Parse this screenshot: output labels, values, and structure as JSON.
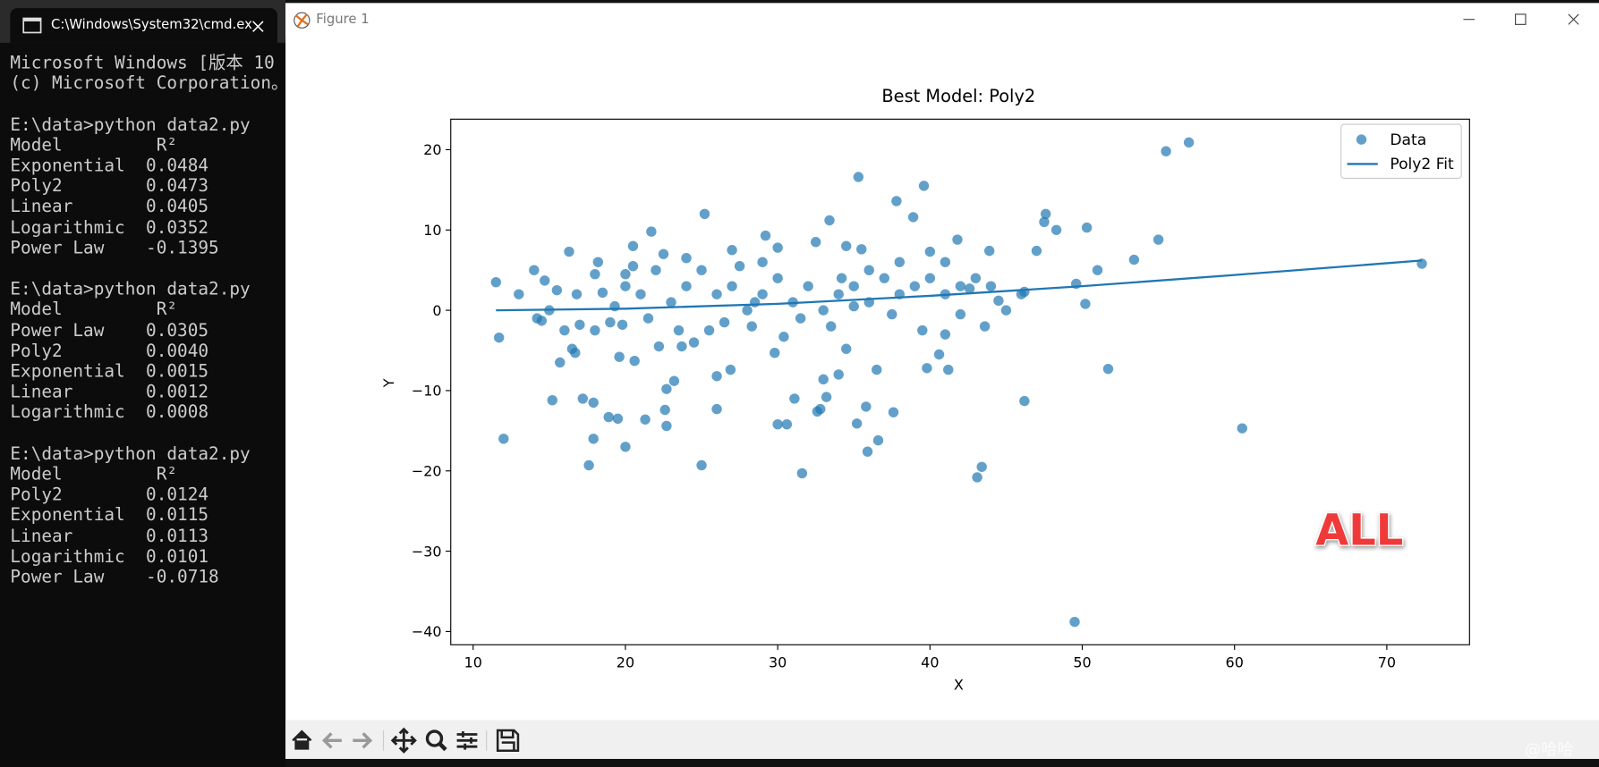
{
  "terminal": {
    "tab_title": "C:\\Windows\\System32\\cmd.ex",
    "blocks": [
      [
        "Microsoft Windows [版本 10",
        "(c) Microsoft Corporation。"
      ],
      [
        "E:\\data>python data2.py",
        "Model         R²",
        "Exponential  0.0484",
        "Poly2        0.0473",
        "Linear       0.0405",
        "Logarithmic  0.0352",
        "Power Law    -0.1395"
      ],
      [
        "E:\\data>python data2.py",
        "Model         R²",
        "Power Law    0.0305",
        "Poly2        0.0040",
        "Exponential  0.0015",
        "Linear       0.0012",
        "Logarithmic  0.0008"
      ],
      [
        "E:\\data>python data2.py",
        "Model         R²",
        "Poly2        0.0124",
        "Exponential  0.0115",
        "Linear       0.0113",
        "Logarithmic  0.0101",
        "Power Law    -0.0718"
      ]
    ]
  },
  "window": {
    "title": "Figure 1"
  },
  "watermark": "@哈哈",
  "chart_data": {
    "type": "scatter",
    "title": "Best Model: Poly2",
    "x_label": "X",
    "y_label": "Y",
    "xlim": [
      8.53,
      75.43
    ],
    "ylim": [
      -41.65,
      23.8
    ],
    "xticks": [
      10,
      20,
      30,
      40,
      50,
      60,
      70
    ],
    "yticks": [
      {
        "value": -40,
        "label": "−40"
      },
      {
        "value": -30,
        "label": "−30"
      },
      {
        "value": -20,
        "label": "−20"
      },
      {
        "value": -10,
        "label": "−10"
      },
      0,
      10,
      20
    ],
    "legend": "upper right",
    "annotation": "ALL",
    "annotation_color": "#f03a3a",
    "series": [
      {
        "name": "Data",
        "type": "scatter",
        "color": "#1f77b4",
        "x": [
          11.5,
          11.7,
          12,
          13,
          14,
          14.2,
          14.5,
          14.7,
          15.2,
          15.5,
          15.7,
          16,
          16.3,
          16.5,
          16.7,
          17,
          17.2,
          17.6,
          17.9,
          17.9,
          18,
          18.2,
          18.5,
          18.9,
          19.3,
          19.5,
          19.6,
          19.8,
          20,
          20,
          20.5,
          20.6,
          21.3,
          21.7,
          22.2,
          22.6,
          22.7,
          22.7,
          23.2,
          23.7,
          24.5,
          25.2,
          25,
          26,
          26,
          26.9,
          27.5,
          28.3,
          29.2,
          29.8,
          30,
          30.4,
          30.6,
          31.1,
          31.6,
          32.6,
          32.8,
          33,
          33.2,
          33.4,
          34,
          34.2,
          34.5,
          35.2,
          35.3,
          35.5,
          35.8,
          35.9,
          36.5,
          36.6,
          37.6,
          37.8,
          38.9,
          39.6,
          39.8,
          40,
          40.6,
          41,
          41.2,
          41.8,
          42.6,
          43.1,
          43.4,
          43.6,
          43.9,
          44.5,
          46.2,
          46.2,
          47,
          47.5,
          47.6,
          48.3,
          49.5,
          49.6,
          50.2,
          50.3,
          51,
          51.7,
          53.4,
          55,
          55.5,
          57,
          60.5,
          72.3,
          20,
          21,
          22,
          23,
          24,
          25,
          26,
          27,
          28,
          29,
          30,
          31,
          32,
          33,
          34,
          35,
          36,
          37,
          38,
          39,
          40,
          41,
          42,
          21.5,
          23.5,
          26.5,
          28.5,
          31.5,
          35,
          37.5,
          19,
          18,
          16.8,
          15,
          24,
          27,
          30,
          32.5,
          34.5,
          36,
          38,
          29,
          22.5,
          20.5,
          25.5,
          33.5,
          39.5,
          42,
          44,
          41,
          43,
          45,
          46
        ],
        "values": [
          3.5,
          -3.4,
          -16,
          2,
          5,
          -1,
          -1.3,
          3.7,
          -11.2,
          2.5,
          -6.5,
          -2.5,
          7.3,
          -4.8,
          -5.3,
          -1.8,
          -11,
          -19.3,
          -16,
          -11.5,
          -2.5,
          6,
          2.2,
          -13.3,
          0.5,
          -13.5,
          -5.8,
          -1.8,
          -17,
          4.5,
          8,
          -6.3,
          -13.6,
          9.8,
          -4.5,
          -12.4,
          -14.4,
          -9.8,
          -8.8,
          -4.5,
          -4,
          12,
          -19.3,
          -8.2,
          -12.3,
          -7.4,
          5.5,
          -2,
          9.3,
          -5.3,
          -14.2,
          -3.3,
          -14.2,
          -11,
          -20.3,
          -12.6,
          -12.3,
          -8.6,
          -10.8,
          11.2,
          -8,
          4,
          -4.8,
          -14.1,
          16.6,
          7.6,
          -12,
          -17.6,
          -7.4,
          -16.2,
          -12.7,
          13.6,
          11.6,
          15.5,
          -7.2,
          7.3,
          -5.5,
          -3,
          -7.4,
          8.8,
          2.7,
          -20.8,
          -19.5,
          -2,
          7.4,
          1.2,
          -11.3,
          2.3,
          7.4,
          11,
          12,
          10,
          -38.8,
          3.3,
          0.8,
          10.3,
          5,
          -7.3,
          6.3,
          8.8,
          19.8,
          20.9,
          -14.7,
          5.8,
          3,
          2,
          5,
          1,
          3,
          5,
          2,
          3,
          0,
          2,
          4,
          1,
          3,
          0,
          2,
          3,
          1,
          4,
          2,
          3,
          4,
          2,
          3,
          -1,
          -2.5,
          -1.5,
          1,
          -1,
          0.5,
          -0.5,
          -1.5,
          4.5,
          2,
          0,
          6.5,
          7.5,
          7.8,
          8.5,
          8,
          5,
          6,
          6,
          7,
          5.5,
          -2.5,
          -2,
          -2.5,
          -0.5,
          3,
          6,
          4,
          0,
          2
        ]
      },
      {
        "name": "Poly2 Fit",
        "type": "line",
        "color": "#1f77b4",
        "x": [
          11.5,
          20,
          30,
          40,
          50,
          60,
          72.3
        ],
        "values": [
          0,
          0.2,
          0.8,
          1.8,
          3.0,
          4.4,
          6.2
        ]
      }
    ]
  }
}
